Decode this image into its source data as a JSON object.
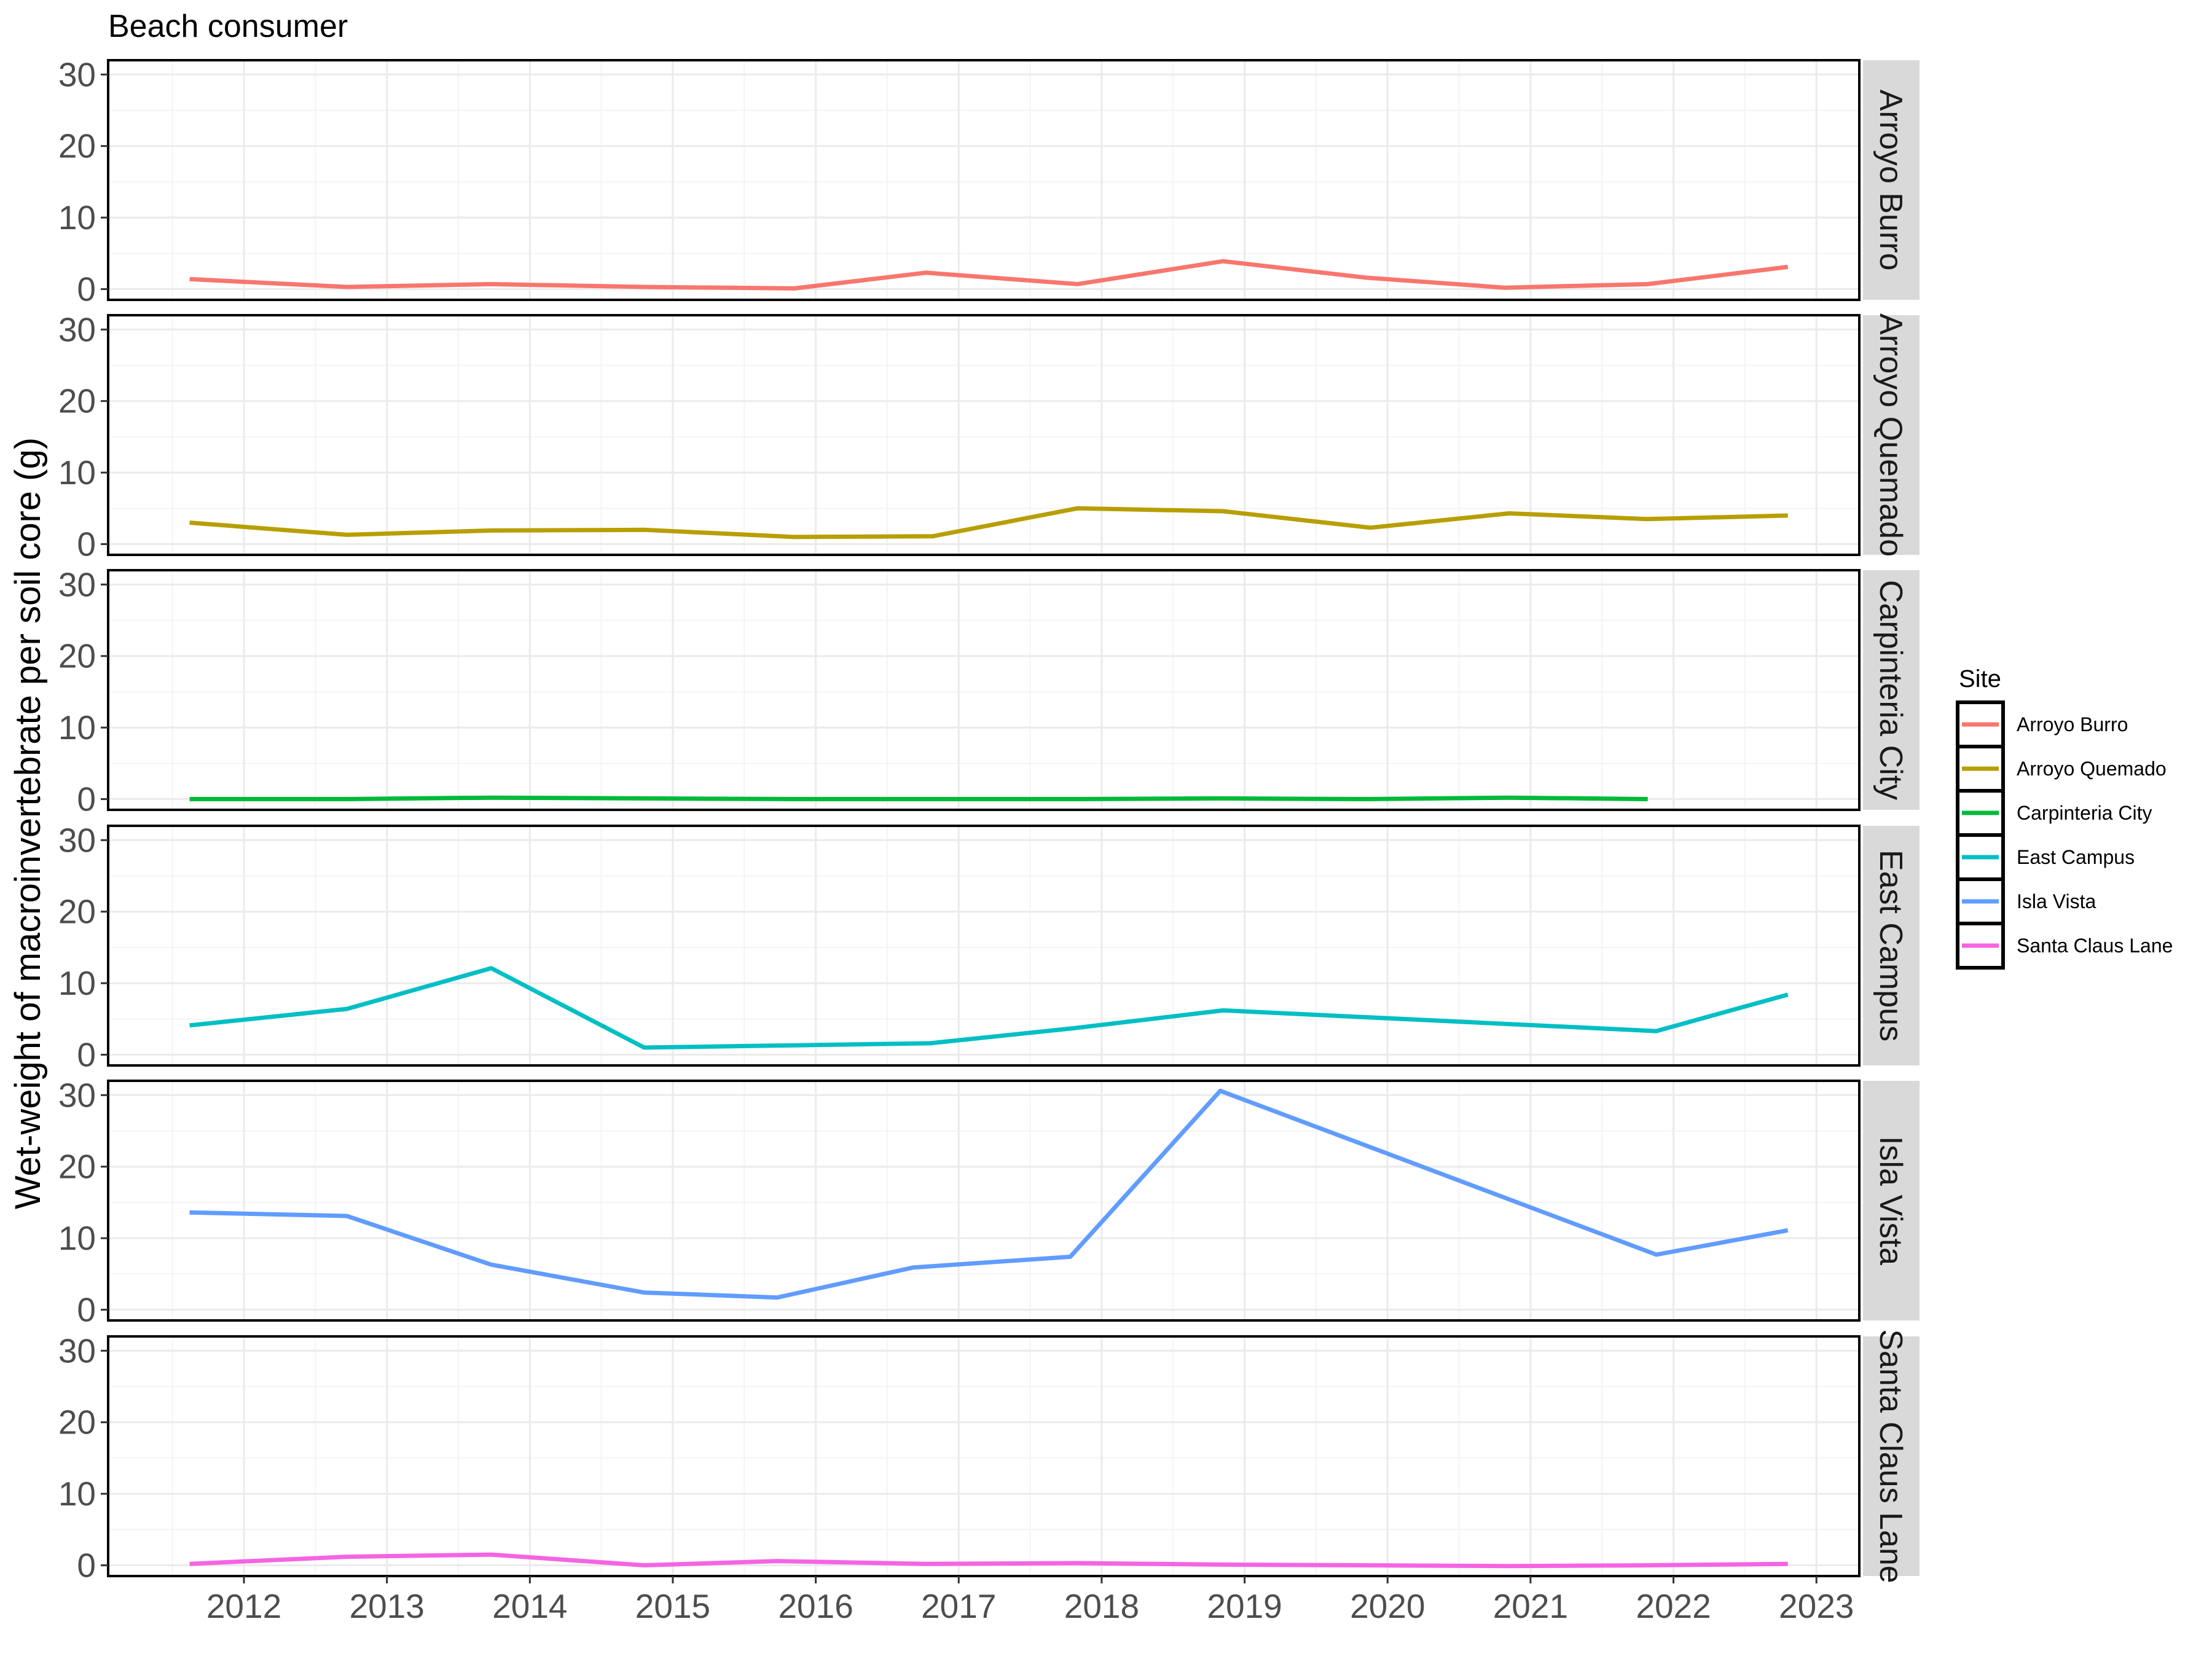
{
  "chart_data": {
    "type": "line",
    "title": "Beach consumer",
    "ylabel": "Wet-weight of macroinvertebrate per soil core (g)",
    "xlabel": "",
    "x_ticks": [
      "2012",
      "2013",
      "2014",
      "2015",
      "2016",
      "2017",
      "2018",
      "2019",
      "2020",
      "2021",
      "2022",
      "2023"
    ],
    "xlim": [
      2011.05,
      2023.3
    ],
    "ylim": [
      -1.5,
      32
    ],
    "y_ticks": [
      "0",
      "10",
      "20",
      "30"
    ],
    "grid": true,
    "legend": {
      "title": "Site",
      "position": "right",
      "entries": [
        "Arroyo Burro",
        "Arroyo Quemado",
        "Carpinteria City",
        "East Campus",
        "Isla Vista",
        "Santa Claus Lane"
      ]
    },
    "colors": {
      "Arroyo Burro": "#F8766D",
      "Arroyo Quemado": "#B79F00",
      "Carpinteria City": "#00BA38",
      "East Campus": "#00BFC4",
      "Isla Vista": "#619CFF",
      "Santa Claus Lane": "#F564E3"
    },
    "series": [
      {
        "name": "Arroyo Burro",
        "x": [
          2011.62,
          2012.72,
          2013.73,
          2014.8,
          2015.85,
          2016.77,
          2017.83,
          2018.85,
          2019.85,
          2020.82,
          2021.82,
          2022.8
        ],
        "y": [
          1.4,
          0.3,
          0.7,
          0.3,
          0.1,
          2.3,
          0.7,
          3.9,
          1.6,
          0.2,
          0.7,
          3.1
        ]
      },
      {
        "name": "Arroyo Quemado",
        "x": [
          2011.62,
          2012.72,
          2013.73,
          2014.8,
          2015.85,
          2016.82,
          2017.83,
          2018.85,
          2019.88,
          2020.85,
          2021.82,
          2022.8
        ],
        "y": [
          3.0,
          1.3,
          1.9,
          2.0,
          1.0,
          1.1,
          5.0,
          4.6,
          2.3,
          4.3,
          3.5,
          4.0
        ]
      },
      {
        "name": "Carpinteria City",
        "x": [
          2011.62,
          2012.72,
          2013.73,
          2014.8,
          2015.85,
          2016.82,
          2017.83,
          2018.85,
          2019.85,
          2020.85,
          2021.82
        ],
        "y": [
          0.0,
          0.0,
          0.2,
          0.1,
          0.0,
          0.0,
          0.0,
          0.1,
          0.0,
          0.2,
          0.0
        ]
      },
      {
        "name": "East Campus",
        "x": [
          2011.62,
          2012.72,
          2013.73,
          2014.8,
          2016.8,
          2017.8,
          2018.85,
          2021.88,
          2022.8
        ],
        "y": [
          4.1,
          6.4,
          12.1,
          1.0,
          1.6,
          3.7,
          6.2,
          3.3,
          8.4
        ]
      },
      {
        "name": "Isla Vista",
        "x": [
          2011.62,
          2012.72,
          2013.73,
          2014.8,
          2015.73,
          2016.68,
          2017.78,
          2018.83,
          2021.88,
          2022.8
        ],
        "y": [
          13.6,
          13.1,
          6.3,
          2.4,
          1.7,
          5.9,
          7.4,
          30.6,
          7.7,
          11.1
        ]
      },
      {
        "name": "Santa Claus Lane",
        "x": [
          2011.62,
          2012.72,
          2013.73,
          2014.8,
          2015.73,
          2016.77,
          2017.83,
          2018.85,
          2019.85,
          2020.85,
          2021.82,
          2022.8
        ],
        "y": [
          0.2,
          1.2,
          1.5,
          0.0,
          0.6,
          0.2,
          0.3,
          0.1,
          0.0,
          -0.1,
          0.0,
          0.2
        ]
      }
    ]
  }
}
